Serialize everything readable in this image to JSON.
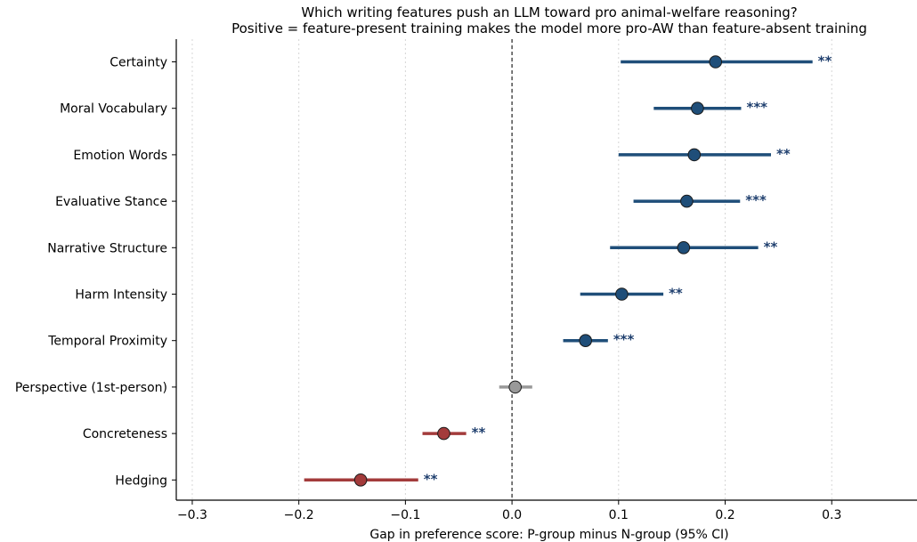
{
  "chart_data": {
    "type": "forest",
    "title": [
      "Which writing features push an LLM toward pro animal-welfare reasoning?",
      "Positive = feature-present training makes the model more pro-AW than feature-absent training"
    ],
    "xlabel": "Gap in preference score: P-group minus N-group  (95% CI)",
    "ylabel": "",
    "xlim": [
      -0.315,
      0.38
    ],
    "xticks": [
      -0.3,
      -0.2,
      -0.1,
      0.0,
      0.1,
      0.2,
      0.3
    ],
    "xtick_labels": [
      "−0.3",
      "−0.2",
      "−0.1",
      "0.0",
      "0.1",
      "0.2",
      "0.3"
    ],
    "reference_line": 0.0,
    "grid": "vertical dotted",
    "colors": {
      "positive": "#1f4e79",
      "negative": "#a33b3b",
      "null": "#999999",
      "significance_text": "#1f3f6e"
    },
    "features": [
      {
        "label": "Certainty",
        "estimate": 0.191,
        "ci_low": 0.102,
        "ci_high": 0.282,
        "significance": "**",
        "direction": "positive"
      },
      {
        "label": "Moral Vocabulary",
        "estimate": 0.174,
        "ci_low": 0.133,
        "ci_high": 0.215,
        "significance": "***",
        "direction": "positive"
      },
      {
        "label": "Emotion Words",
        "estimate": 0.171,
        "ci_low": 0.1,
        "ci_high": 0.243,
        "significance": "**",
        "direction": "positive"
      },
      {
        "label": "Evaluative Stance",
        "estimate": 0.164,
        "ci_low": 0.114,
        "ci_high": 0.214,
        "significance": "***",
        "direction": "positive"
      },
      {
        "label": "Narrative Structure",
        "estimate": 0.161,
        "ci_low": 0.092,
        "ci_high": 0.231,
        "significance": "**",
        "direction": "positive"
      },
      {
        "label": "Harm Intensity",
        "estimate": 0.103,
        "ci_low": 0.064,
        "ci_high": 0.142,
        "significance": "**",
        "direction": "positive"
      },
      {
        "label": "Temporal Proximity",
        "estimate": 0.069,
        "ci_low": 0.048,
        "ci_high": 0.09,
        "significance": "***",
        "direction": "positive"
      },
      {
        "label": "Perspective (1st-person)",
        "estimate": 0.003,
        "ci_low": -0.012,
        "ci_high": 0.019,
        "significance": "",
        "direction": "null"
      },
      {
        "label": "Concreteness",
        "estimate": -0.064,
        "ci_low": -0.084,
        "ci_high": -0.043,
        "significance": "**",
        "direction": "negative"
      },
      {
        "label": "Hedging",
        "estimate": -0.142,
        "ci_low": -0.195,
        "ci_high": -0.088,
        "significance": "**",
        "direction": "negative"
      }
    ]
  }
}
